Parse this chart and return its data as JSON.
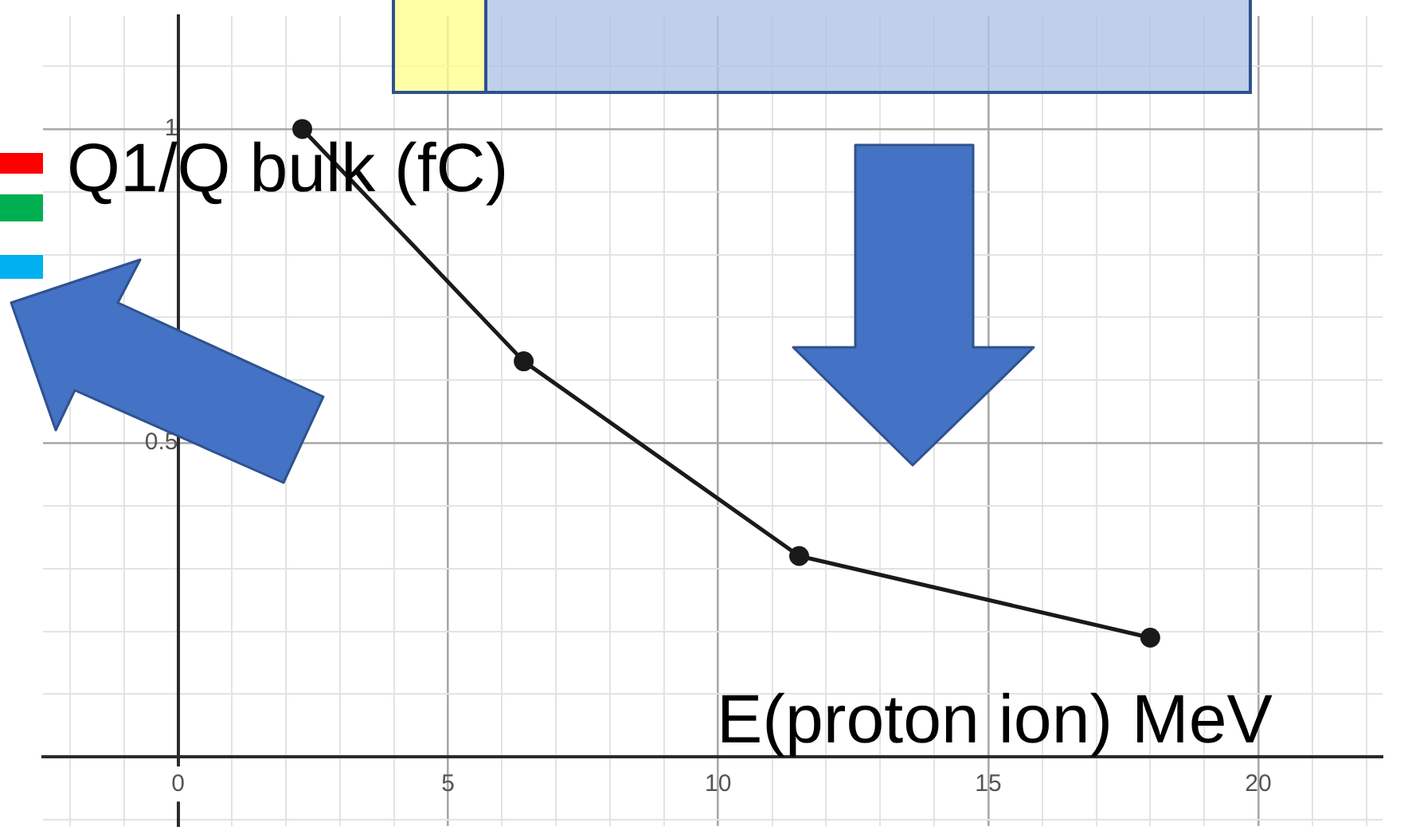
{
  "chart_data": {
    "type": "line",
    "xlabel": "E(proton ion) MeV",
    "ylabel": "Q1/Q bulk (fC)",
    "x": [
      2.3,
      6.4,
      11.5,
      18
    ],
    "series": [
      {
        "color": "#1a1a1a",
        "values": [
          1.0,
          0.63,
          0.32,
          0.19
        ]
      }
    ],
    "xlim": [
      -2.5,
      22.3
    ],
    "ylim": [
      -0.11,
      1.18
    ],
    "xticks": [
      {
        "value": -2,
        "label": null
      },
      {
        "value": -1,
        "label": null
      },
      0,
      {
        "value": 1,
        "label": null
      },
      {
        "value": 2,
        "label": null
      },
      {
        "value": 3,
        "label": null
      },
      {
        "value": 4,
        "label": null
      },
      5,
      {
        "value": 6,
        "label": null
      },
      {
        "value": 7,
        "label": null
      },
      {
        "value": 8,
        "label": null
      },
      {
        "value": 9,
        "label": null
      },
      10,
      {
        "value": 11,
        "label": null
      },
      {
        "value": 12,
        "label": null
      },
      {
        "value": 13,
        "label": null
      },
      {
        "value": 14,
        "label": null
      },
      15,
      {
        "value": 16,
        "label": null
      },
      {
        "value": 17,
        "label": null
      },
      {
        "value": 18,
        "label": null
      },
      {
        "value": 19,
        "label": null
      },
      20,
      {
        "value": 21,
        "label": null
      },
      {
        "value": 22,
        "label": null
      }
    ],
    "yticks": [
      {
        "value": -0.1,
        "label": null
      },
      {
        "value": 0,
        "label": null
      },
      {
        "value": 0.1,
        "label": null
      },
      {
        "value": 0.2,
        "label": null
      },
      {
        "value": 0.3,
        "label": null
      },
      {
        "value": 0.4,
        "label": null
      },
      0.5,
      {
        "value": 0.6,
        "label": null
      },
      {
        "value": 0.7,
        "label": null
      },
      {
        "value": 0.8,
        "label": null
      },
      {
        "value": 0.9,
        "label": null
      },
      1,
      {
        "value": 1.1,
        "label": null
      }
    ],
    "grid": true,
    "legend": false,
    "marker": "circle",
    "line_style": "solid"
  }
}
